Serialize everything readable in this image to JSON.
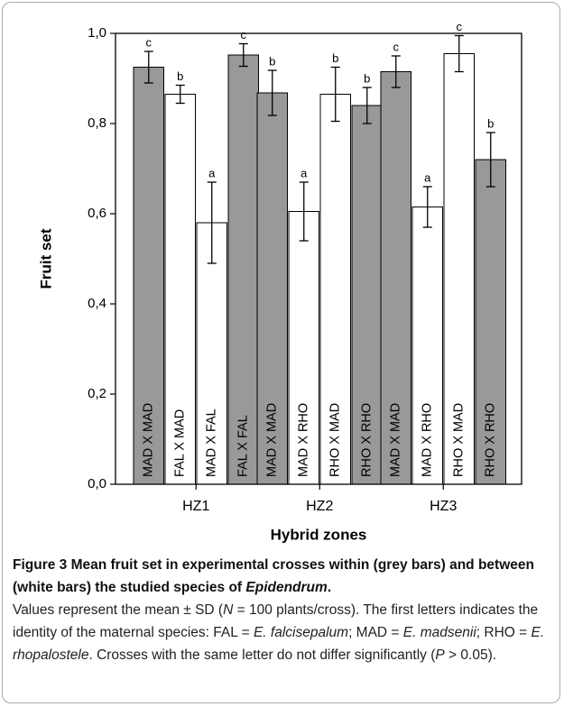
{
  "chart_data": {
    "type": "bar",
    "ylabel": "Fruit set",
    "xlabel": "Hybrid zones",
    "ylim": [
      0,
      1
    ],
    "yticks": [
      {
        "value": 0,
        "label": "0,0"
      },
      {
        "value": 0.2,
        "label": "0,2"
      },
      {
        "value": 0.4,
        "label": "0,4"
      },
      {
        "value": 0.6,
        "label": "0,6"
      },
      {
        "value": 0.8,
        "label": "0,8"
      },
      {
        "value": 1,
        "label": "1,0"
      }
    ],
    "groups": [
      {
        "name": "HZ1",
        "bars": [
          {
            "label": "MAD X MAD",
            "value": 0.925,
            "error": 0.035,
            "letter": "c",
            "color": "#999999"
          },
          {
            "label": "FAL X MAD",
            "value": 0.865,
            "error": 0.02,
            "letter": "b",
            "color": "#ffffff"
          },
          {
            "label": "MAD X FAL",
            "value": 0.58,
            "error": 0.09,
            "letter": "a",
            "color": "#ffffff"
          },
          {
            "label": "FAL X FAL",
            "value": 0.952,
            "error": 0.025,
            "letter": "c",
            "color": "#999999"
          }
        ]
      },
      {
        "name": "HZ2",
        "bars": [
          {
            "label": "MAD X MAD",
            "value": 0.868,
            "error": 0.05,
            "letter": "b",
            "color": "#999999"
          },
          {
            "label": "MAD X RHO",
            "value": 0.605,
            "error": 0.065,
            "letter": "a",
            "color": "#ffffff"
          },
          {
            "label": "RHO X MAD",
            "value": 0.865,
            "error": 0.06,
            "letter": "b",
            "color": "#ffffff"
          },
          {
            "label": "RHO X RHO",
            "value": 0.84,
            "error": 0.04,
            "letter": "b",
            "color": "#999999"
          }
        ]
      },
      {
        "name": "HZ3",
        "bars": [
          {
            "label": "MAD X MAD",
            "value": 0.915,
            "error": 0.035,
            "letter": "c",
            "color": "#999999"
          },
          {
            "label": "MAD X RHO",
            "value": 0.615,
            "error": 0.045,
            "letter": "a",
            "color": "#ffffff"
          },
          {
            "label": "RHO X MAD",
            "value": 0.955,
            "error": 0.04,
            "letter": "c",
            "color": "#ffffff"
          },
          {
            "label": "RHO X RHO",
            "value": 0.72,
            "error": 0.06,
            "letter": "b",
            "color": "#999999"
          }
        ]
      }
    ]
  },
  "caption": {
    "title": [
      {
        "text": "Figure 3 Mean fruit set in experimental crosses within (grey bars) and between (white bars) the studied species of ",
        "italic": false
      },
      {
        "text": "Epidendrum",
        "italic": true
      },
      {
        "text": ".",
        "italic": false
      }
    ],
    "body": [
      {
        "text": "Values represent the mean ± SD (",
        "italic": false
      },
      {
        "text": "N",
        "italic": true
      },
      {
        "text": " = 100 plants/cross). The first letters indicates the identity of the maternal species: FAL = ",
        "italic": false
      },
      {
        "text": "E. falcisepalum",
        "italic": true
      },
      {
        "text": "; MAD = ",
        "italic": false
      },
      {
        "text": "E. madsenii",
        "italic": true
      },
      {
        "text": "; RHO = ",
        "italic": false
      },
      {
        "text": "E. rhopalostele",
        "italic": true
      },
      {
        "text": ". Crosses with the same letter do not differ significantly (",
        "italic": false
      },
      {
        "text": "P",
        "italic": true
      },
      {
        "text": " > 0.05).",
        "italic": false
      }
    ]
  }
}
